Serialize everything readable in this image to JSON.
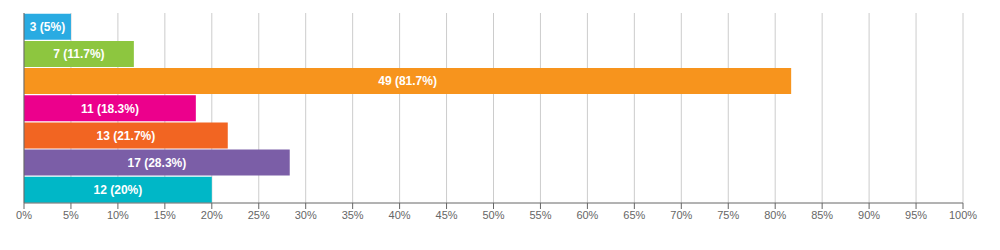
{
  "chart_data": {
    "type": "bar",
    "orientation": "horizontal",
    "categories": [
      null,
      null,
      null,
      null,
      null,
      null,
      null
    ],
    "values": [
      5,
      11.7,
      81.7,
      18.3,
      21.7,
      28.3,
      20
    ],
    "value_labels": [
      "3 (5%)",
      "7 (11.7%)",
      "49 (81.7%)",
      "11 (18.3%)",
      "13 (21.7%)",
      "17 (28.3%)",
      "12 (20%)"
    ],
    "data_labels": true,
    "colors": [
      "#29abe2",
      "#8dc63f",
      "#f7941d",
      "#ec008c",
      "#f26522",
      "#7b5ea7",
      "#00b7c7"
    ],
    "xlim": [
      0,
      100
    ],
    "xticks": [
      {
        "value": 0,
        "label": "0%"
      },
      {
        "value": 5,
        "label": "5%"
      },
      {
        "value": 10,
        "label": "10%"
      },
      {
        "value": 15,
        "label": "15%"
      },
      {
        "value": 20,
        "label": "20%"
      },
      {
        "value": 25,
        "label": "25%"
      },
      {
        "value": 30,
        "label": "30%"
      },
      {
        "value": 35,
        "label": "35%"
      },
      {
        "value": 40,
        "label": "40%"
      },
      {
        "value": 45,
        "label": "45%"
      },
      {
        "value": 50,
        "label": "50%"
      },
      {
        "value": 55,
        "label": "55%"
      },
      {
        "value": 60,
        "label": "60%"
      },
      {
        "value": 65,
        "label": "65%"
      },
      {
        "value": 70,
        "label": "70%"
      },
      {
        "value": 75,
        "label": "75%"
      },
      {
        "value": 80,
        "label": "80%"
      },
      {
        "value": 85,
        "label": "85%"
      },
      {
        "value": 90,
        "label": "90%"
      },
      {
        "value": 95,
        "label": "95%"
      },
      {
        "value": 100,
        "label": "100%"
      }
    ],
    "grid": true,
    "tick_labels": "x"
  }
}
